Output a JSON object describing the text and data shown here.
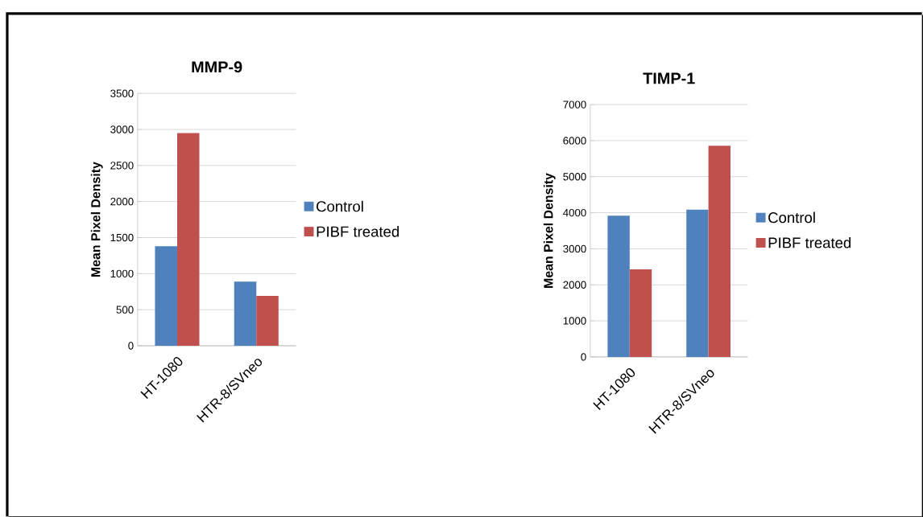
{
  "chart_data": [
    {
      "type": "bar",
      "title": "MMP-9",
      "ylabel": "Mean Pixel Density",
      "categories": [
        "HT-1080",
        "HTR-8/SVneo"
      ],
      "series": [
        {
          "name": "Control",
          "color": "#4f81bd",
          "values": [
            1380,
            890
          ]
        },
        {
          "name": "PIBF treated",
          "color": "#c0504d",
          "values": [
            2950,
            690
          ]
        }
      ],
      "ylim": [
        0,
        3500
      ],
      "yticks": [
        0,
        500,
        1000,
        1500,
        2000,
        2500,
        3000,
        3500
      ],
      "grid": "y",
      "legend": "right"
    },
    {
      "type": "bar",
      "title": "TIMP-1",
      "ylabel": "Mean Pixel Density",
      "categories": [
        "HT-1080",
        "HTR-8/SVneo"
      ],
      "series": [
        {
          "name": "Control",
          "color": "#4f81bd",
          "values": [
            3920,
            4090
          ]
        },
        {
          "name": "PIBF treated",
          "color": "#c0504d",
          "values": [
            2430,
            5860
          ]
        }
      ],
      "ylim": [
        0,
        7000
      ],
      "yticks": [
        0,
        1000,
        2000,
        3000,
        4000,
        5000,
        6000,
        7000
      ],
      "grid": "y",
      "legend": "right"
    }
  ]
}
